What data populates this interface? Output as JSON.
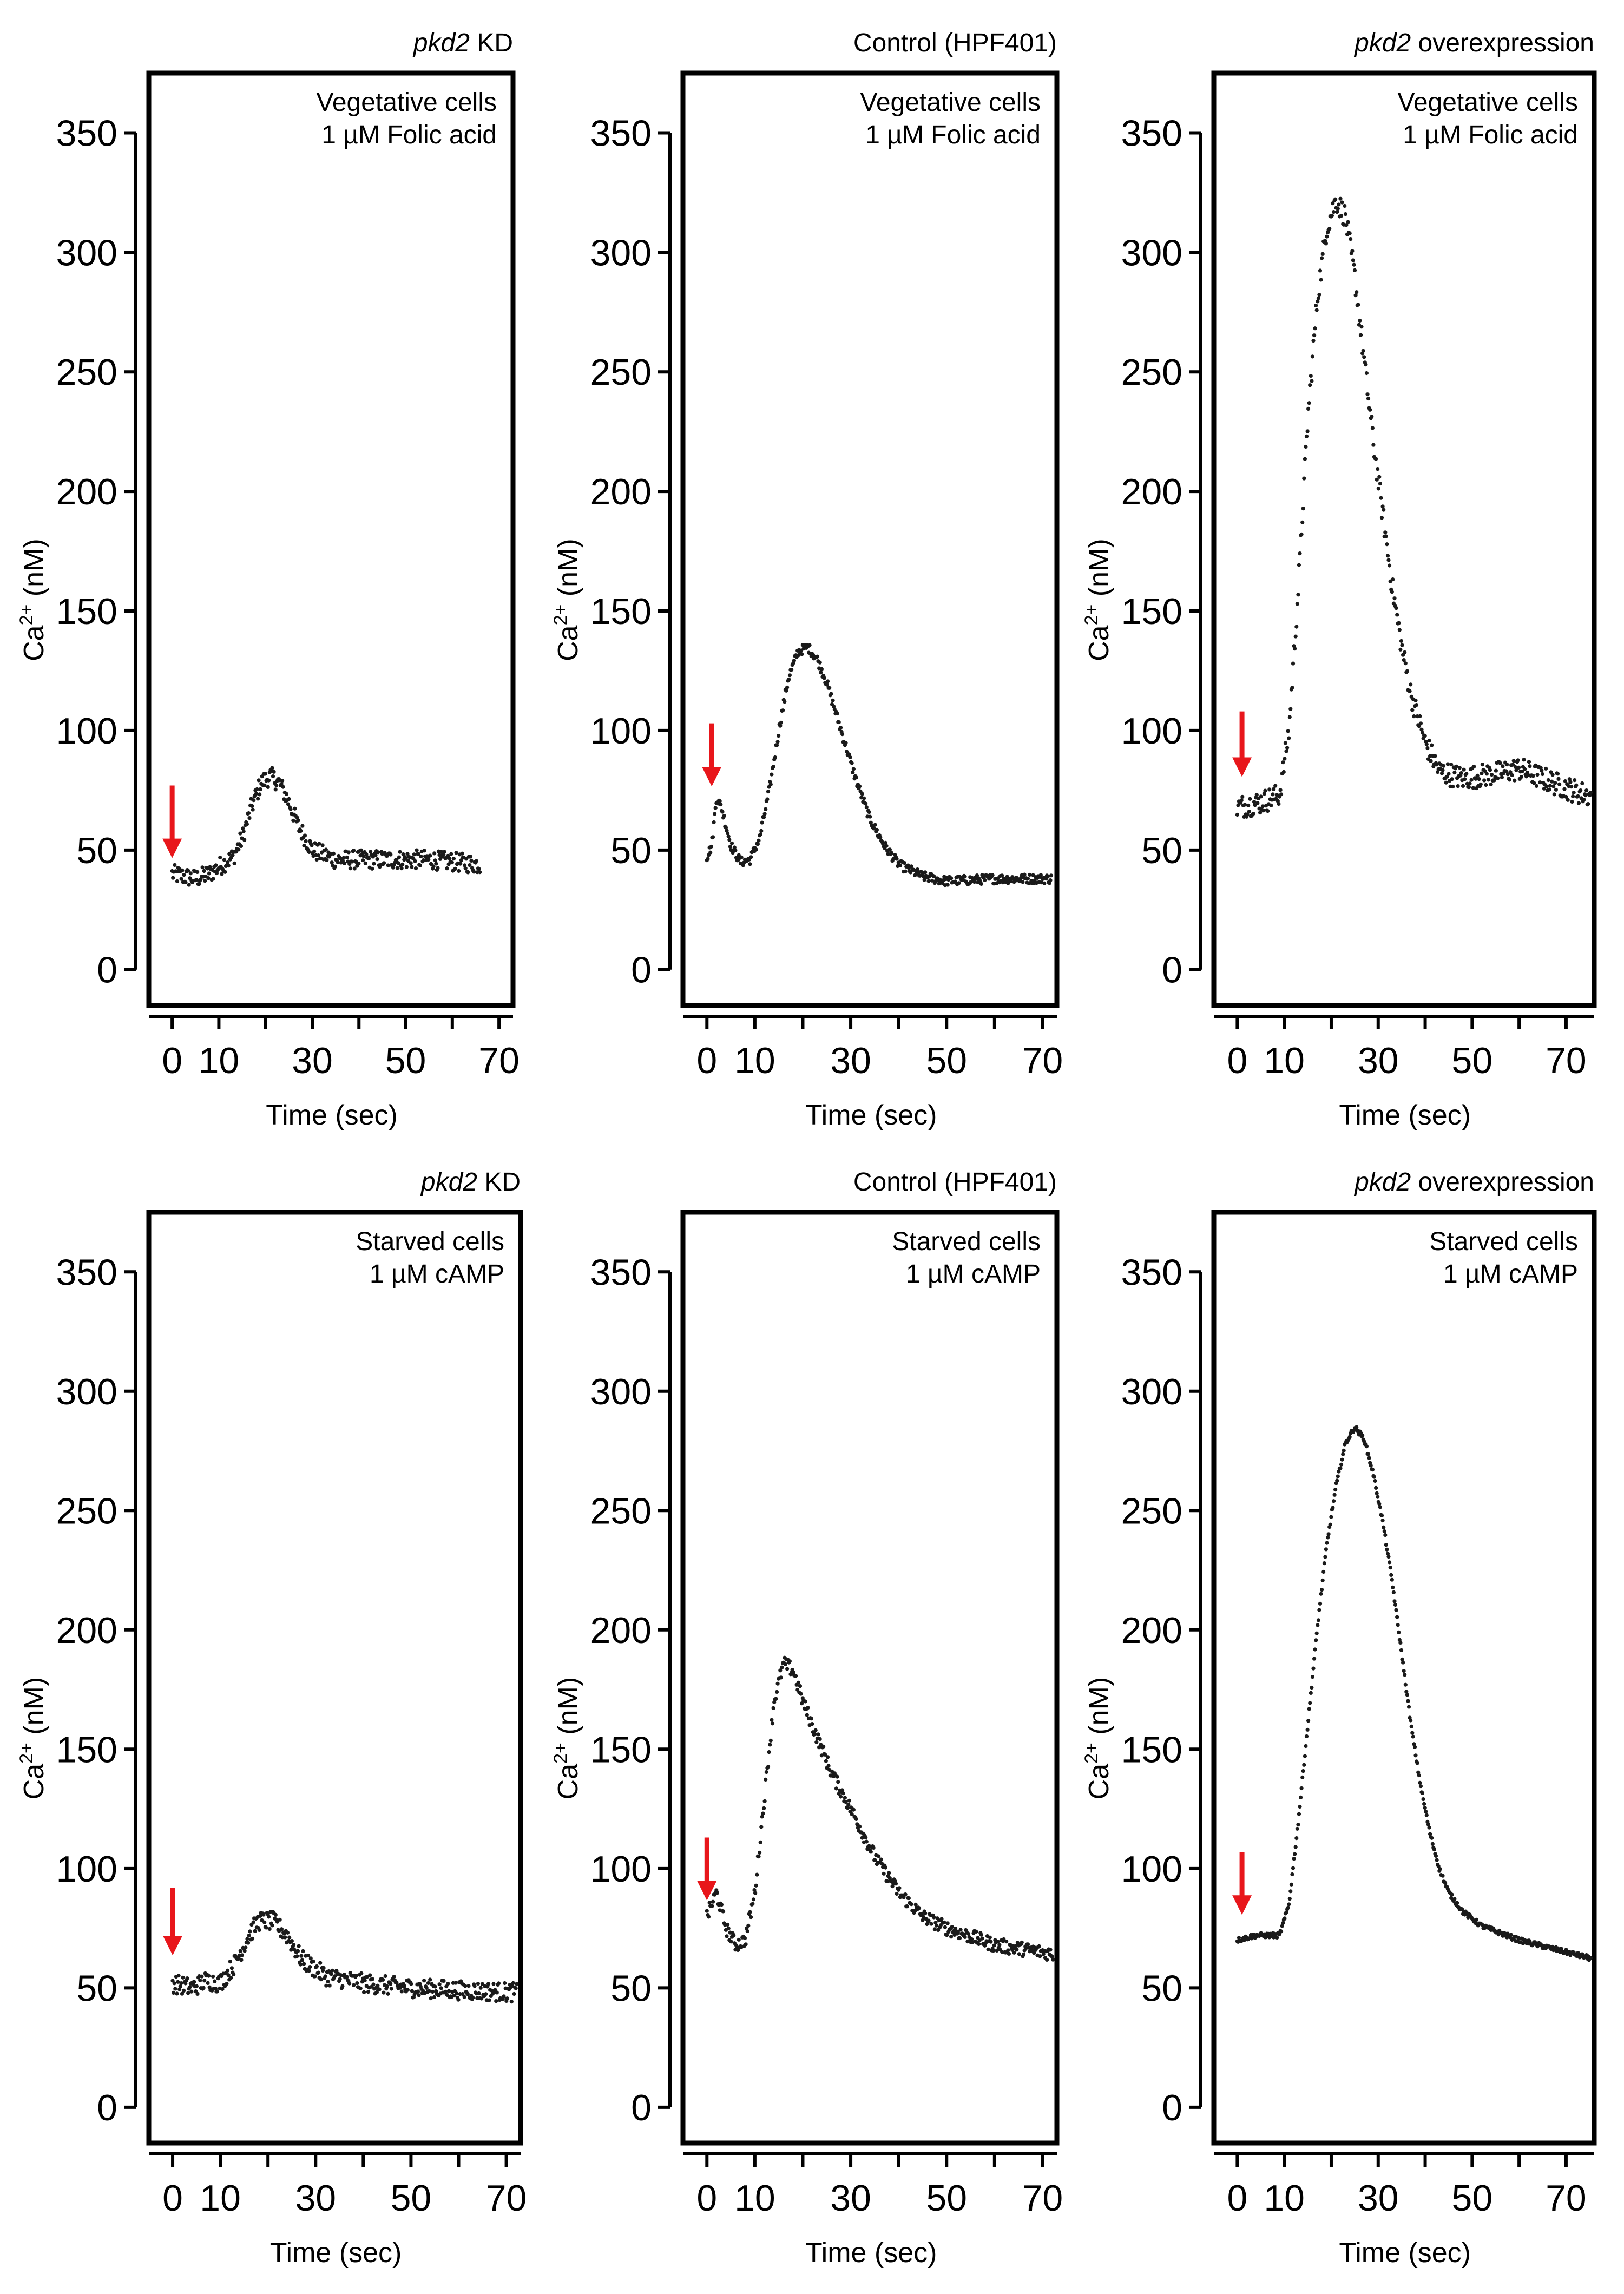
{
  "figure": {
    "ylabel_base": "Ca",
    "ylabel_sup": "2+",
    "ylabel_rest": " (nM)",
    "xlabel": "Time (sec)",
    "yticks": [
      "0",
      "50",
      "100",
      "150",
      "200",
      "250",
      "300",
      "350"
    ],
    "xticks": [
      "0",
      "10",
      "30",
      "50",
      "70"
    ],
    "stimulus_marker_color": "#e8161b",
    "data_color": "#1a1a1a"
  },
  "chart_data": [
    {
      "type": "scatter",
      "title_italic": "pkd2",
      "title_rest": " KD",
      "condition_line1": "Vegetative cells",
      "condition_line2": "1 µM Folic acid",
      "xlabel": "Time (sec)",
      "ylabel": "Ca2+ (nM)",
      "xlim": [
        -5,
        73
      ],
      "ylim": [
        -15,
        375
      ],
      "stimulus_time": 0,
      "stimulus_top_value": 77,
      "stimulus_bottom_value": 48,
      "trace": [
        [
          0,
          40
        ],
        [
          5,
          38
        ],
        [
          8,
          40
        ],
        [
          10,
          43
        ],
        [
          13,
          47
        ],
        [
          15,
          55
        ],
        [
          17,
          68
        ],
        [
          19,
          78
        ],
        [
          21,
          81
        ],
        [
          23,
          78
        ],
        [
          25,
          70
        ],
        [
          27,
          60
        ],
        [
          30,
          50
        ],
        [
          35,
          46
        ],
        [
          45,
          46
        ],
        [
          55,
          46
        ],
        [
          66,
          44
        ]
      ],
      "noise": 4
    },
    {
      "type": "scatter",
      "title_italic": "",
      "title_rest": "Control (HPF401)",
      "condition_line1": "Vegetative cells",
      "condition_line2": "1 µM Folic acid",
      "xlabel": "Time (sec)",
      "ylabel": "Ca2+ (nM)",
      "xlim": [
        -5,
        73
      ],
      "ylim": [
        -15,
        375
      ],
      "stimulus_time": 1,
      "stimulus_top_value": 103,
      "stimulus_bottom_value": 78,
      "trace": [
        [
          0,
          47
        ],
        [
          1,
          52
        ],
        [
          2,
          72
        ],
        [
          3,
          68
        ],
        [
          5,
          52
        ],
        [
          7,
          45
        ],
        [
          9,
          46
        ],
        [
          11,
          55
        ],
        [
          13,
          75
        ],
        [
          15,
          100
        ],
        [
          17,
          122
        ],
        [
          19,
          133
        ],
        [
          21,
          135
        ],
        [
          23,
          130
        ],
        [
          25,
          120
        ],
        [
          28,
          100
        ],
        [
          31,
          80
        ],
        [
          34,
          63
        ],
        [
          37,
          52
        ],
        [
          40,
          44
        ],
        [
          45,
          39
        ],
        [
          50,
          37
        ],
        [
          60,
          38
        ],
        [
          72,
          38
        ]
      ],
      "noise": 2
    },
    {
      "type": "scatter",
      "title_italic": "pkd2",
      "title_rest": " overexpression",
      "condition_line1": "Vegetative cells",
      "condition_line2": "1 µM Folic acid",
      "xlabel": "Time (sec)",
      "ylabel": "Ca2+ (nM)",
      "xlim": [
        -5,
        76
      ],
      "ylim": [
        -15,
        375
      ],
      "stimulus_time": 1,
      "stimulus_top_value": 108,
      "stimulus_bottom_value": 82,
      "trace": [
        [
          0,
          68
        ],
        [
          5,
          70
        ],
        [
          9,
          73
        ],
        [
          11,
          100
        ],
        [
          13,
          160
        ],
        [
          15,
          230
        ],
        [
          17,
          280
        ],
        [
          19,
          310
        ],
        [
          21,
          322
        ],
        [
          23,
          315
        ],
        [
          25,
          290
        ],
        [
          27,
          255
        ],
        [
          29,
          220
        ],
        [
          31,
          190
        ],
        [
          33,
          160
        ],
        [
          35,
          135
        ],
        [
          37,
          115
        ],
        [
          40,
          95
        ],
        [
          43,
          83
        ],
        [
          48,
          80
        ],
        [
          55,
          82
        ],
        [
          60,
          84
        ],
        [
          65,
          80
        ],
        [
          70,
          76
        ],
        [
          76,
          72
        ]
      ],
      "noise": 5
    },
    {
      "type": "scatter",
      "title_italic": "pkd2",
      "title_rest": " KD",
      "condition_line1": "Starved cells",
      "condition_line2": "1 µM cAMP",
      "xlabel": "Time (sec)",
      "ylabel": "Ca2+ (nM)",
      "xlim": [
        -5,
        73
      ],
      "ylim": [
        -15,
        375
      ],
      "stimulus_time": 0,
      "stimulus_top_value": 92,
      "stimulus_bottom_value": 65,
      "trace": [
        [
          0,
          52
        ],
        [
          4,
          50
        ],
        [
          7,
          53
        ],
        [
          10,
          52
        ],
        [
          13,
          60
        ],
        [
          16,
          72
        ],
        [
          18,
          78
        ],
        [
          21,
          78
        ],
        [
          24,
          72
        ],
        [
          27,
          62
        ],
        [
          32,
          55
        ],
        [
          40,
          52
        ],
        [
          50,
          50
        ],
        [
          60,
          49
        ],
        [
          73,
          48
        ]
      ],
      "noise": 4
    },
    {
      "type": "scatter",
      "title_italic": "",
      "title_rest": "Control (HPF401)",
      "condition_line1": "Starved cells",
      "condition_line2": "1 µM cAMP",
      "xlabel": "Time (sec)",
      "ylabel": "Ca2+ (nM)",
      "xlim": [
        -5,
        73
      ],
      "ylim": [
        -15,
        375
      ],
      "stimulus_time": 0,
      "stimulus_top_value": 113,
      "stimulus_bottom_value": 88,
      "trace": [
        [
          0,
          80
        ],
        [
          2,
          90
        ],
        [
          4,
          75
        ],
        [
          6,
          68
        ],
        [
          8,
          70
        ],
        [
          10,
          90
        ],
        [
          12,
          130
        ],
        [
          14,
          170
        ],
        [
          16,
          186
        ],
        [
          18,
          183
        ],
        [
          20,
          170
        ],
        [
          23,
          155
        ],
        [
          26,
          140
        ],
        [
          30,
          125
        ],
        [
          35,
          105
        ],
        [
          40,
          90
        ],
        [
          45,
          80
        ],
        [
          50,
          75
        ],
        [
          60,
          68
        ],
        [
          70,
          65
        ],
        [
          73,
          64
        ]
      ],
      "noise": 3
    },
    {
      "type": "scatter",
      "title_italic": "pkd2",
      "title_rest": " overexpression",
      "condition_line1": "Starved cells",
      "condition_line2": "1 µM cAMP",
      "xlabel": "Time (sec)",
      "ylabel": "Ca2+ (nM)",
      "xlim": [
        -5,
        76
      ],
      "ylim": [
        -15,
        375
      ],
      "stimulus_time": 1,
      "stimulus_top_value": 107,
      "stimulus_bottom_value": 82,
      "trace": [
        [
          0,
          70
        ],
        [
          4,
          72
        ],
        [
          9,
          72
        ],
        [
          11,
          85
        ],
        [
          13,
          120
        ],
        [
          15,
          160
        ],
        [
          17,
          200
        ],
        [
          19,
          235
        ],
        [
          21,
          260
        ],
        [
          23,
          278
        ],
        [
          25,
          285
        ],
        [
          27,
          280
        ],
        [
          29,
          265
        ],
        [
          31,
          245
        ],
        [
          33,
          220
        ],
        [
          35,
          190
        ],
        [
          37,
          160
        ],
        [
          39,
          135
        ],
        [
          41,
          115
        ],
        [
          43,
          100
        ],
        [
          45,
          90
        ],
        [
          48,
          82
        ],
        [
          52,
          76
        ],
        [
          60,
          70
        ],
        [
          70,
          65
        ],
        [
          76,
          62
        ]
      ],
      "noise": 1
    }
  ]
}
